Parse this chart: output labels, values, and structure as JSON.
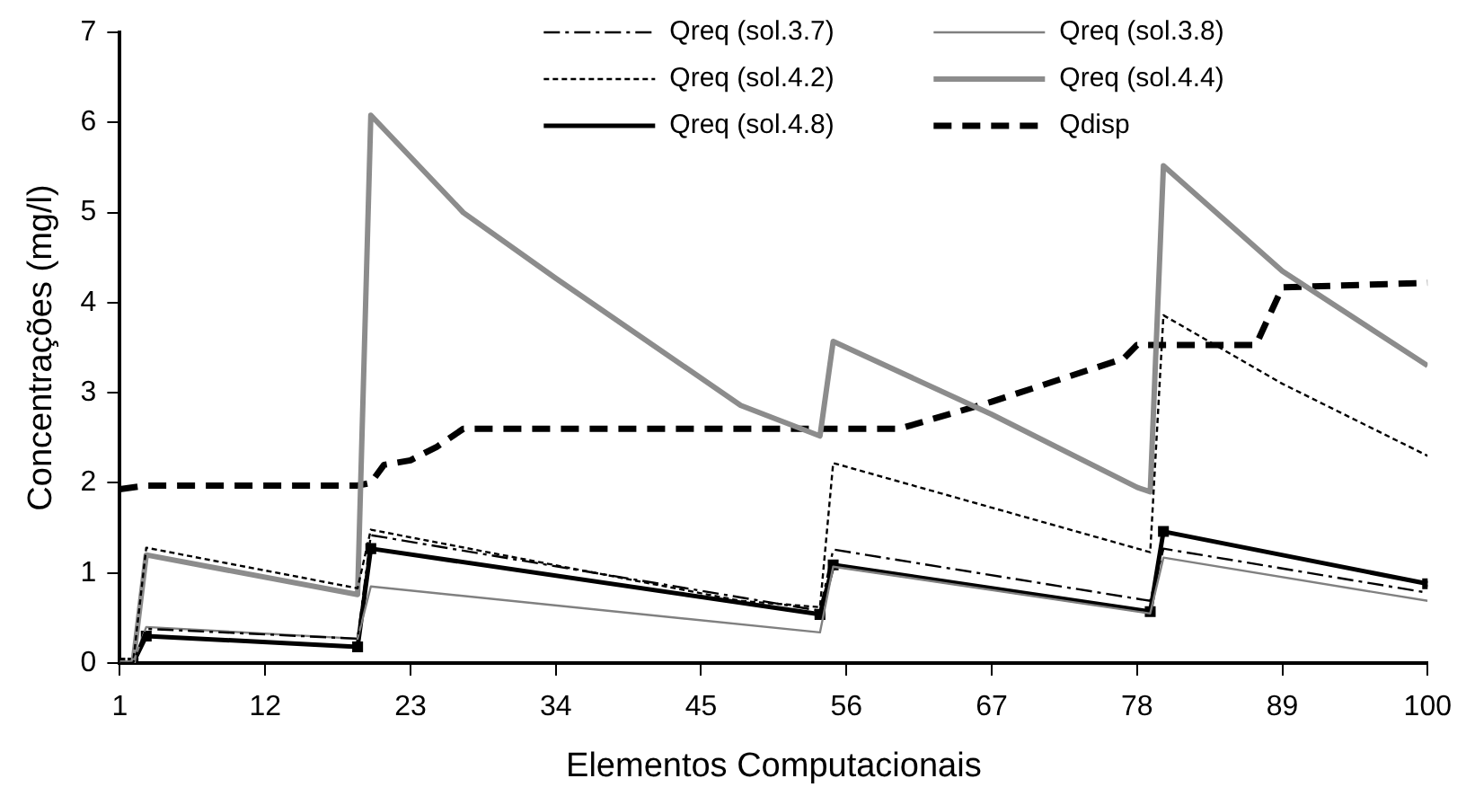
{
  "chart_data": {
    "type": "line",
    "xlabel": "Elementos Computacionais",
    "ylabel": "Concentrações (mg/l)",
    "xlim": [
      1,
      100
    ],
    "xticks": [
      1,
      12,
      23,
      34,
      45,
      56,
      67,
      78,
      89,
      100
    ],
    "ylim": [
      0,
      7
    ],
    "yticks": [
      0,
      1,
      2,
      3,
      4,
      5,
      6,
      7
    ],
    "grid": false,
    "legend": "top right",
    "marker": "none",
    "series": [
      {
        "name": "Qreq (sol.3.7)",
        "color": "#000000",
        "line_style": "dashdot",
        "x": [
          1,
          2,
          3,
          19,
          20,
          54,
          55,
          79,
          80,
          100
        ],
        "values": [
          0,
          0,
          0.38,
          0.27,
          1.42,
          0.58,
          1.26,
          0.69,
          1.27,
          0.78
        ]
      },
      {
        "name": "Qreq (sol.3.8)",
        "color": "#808080",
        "line_style": "solid",
        "x": [
          1,
          2,
          3,
          19,
          20,
          54,
          55,
          79,
          80,
          100
        ],
        "values": [
          0,
          0,
          0.4,
          0.27,
          0.85,
          0.34,
          1.07,
          0.55,
          1.17,
          0.69
        ]
      },
      {
        "name": "Qreq (sol.4.2)",
        "color": "#000000",
        "line_style": "dotted",
        "x": [
          1,
          2,
          3,
          19,
          20,
          48,
          54,
          55,
          79,
          80,
          89,
          100
        ],
        "values": [
          0,
          0,
          1.28,
          0.83,
          1.48,
          0.69,
          0.62,
          2.22,
          1.23,
          3.86,
          3.1,
          2.3
        ]
      },
      {
        "name": "Qreq (sol.4.4)",
        "color": "#8c8c8c",
        "line_style": "solid",
        "x": [
          1,
          2,
          3,
          19,
          20,
          27,
          34,
          48,
          54,
          55,
          67,
          78,
          79,
          80,
          89,
          100
        ],
        "values": [
          0,
          0,
          1.2,
          0.76,
          6.08,
          5.0,
          4.27,
          2.86,
          2.52,
          3.57,
          2.76,
          1.95,
          1.9,
          5.52,
          4.35,
          3.3
        ]
      },
      {
        "name": "Qreq (sol.4.8)",
        "color": "#000000",
        "line_style": "solid",
        "marker": "square",
        "x": [
          1,
          2,
          3,
          19,
          20,
          54,
          55,
          79,
          80,
          100
        ],
        "values": [
          0,
          0,
          0.3,
          0.18,
          1.27,
          0.54,
          1.09,
          0.57,
          1.46,
          0.88
        ]
      },
      {
        "name": "Qdisp",
        "color": "#000000",
        "line_style": "dashed",
        "x": [
          1,
          3,
          19,
          20,
          21,
          23,
          25,
          27,
          60,
          67,
          77,
          78,
          87,
          89,
          100
        ],
        "values": [
          1.93,
          1.97,
          1.97,
          2.0,
          2.2,
          2.25,
          2.4,
          2.6,
          2.6,
          2.9,
          3.38,
          3.53,
          3.53,
          4.17,
          4.22
        ]
      }
    ]
  }
}
